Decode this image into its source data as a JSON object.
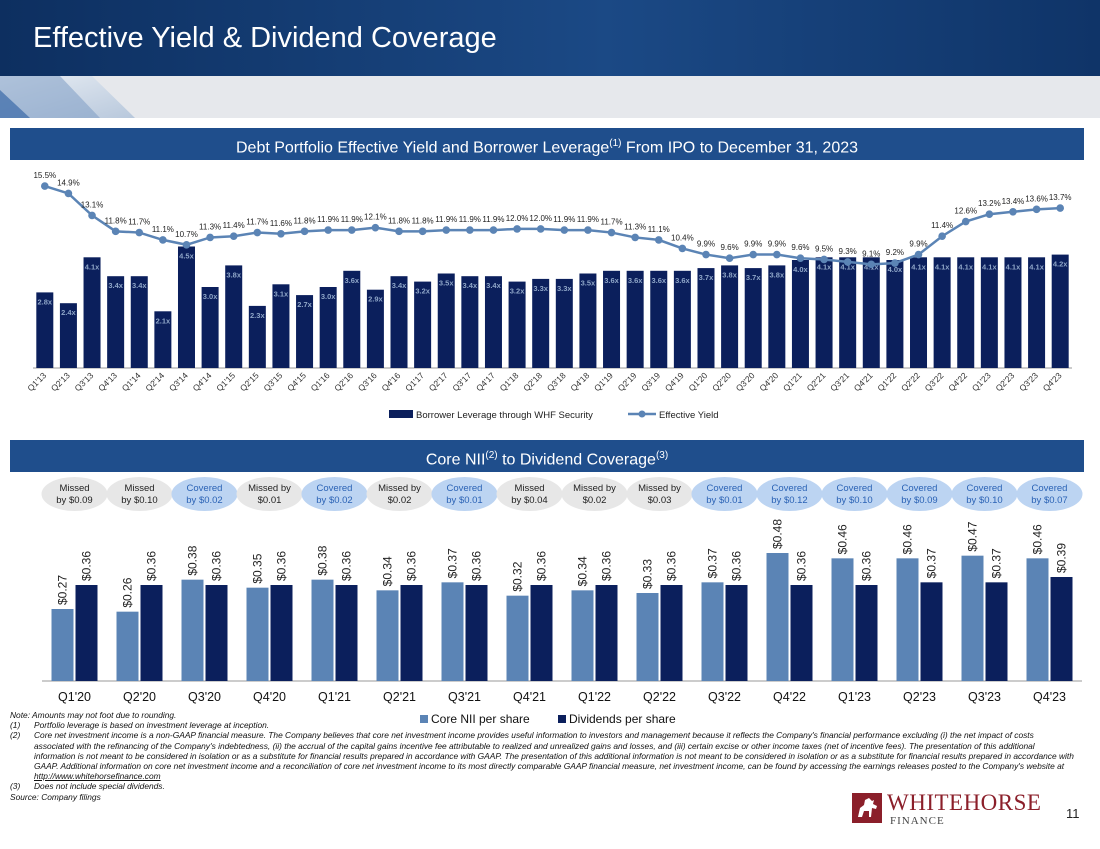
{
  "page": {
    "title": "Effective Yield & Dividend Coverage",
    "page_number": "11"
  },
  "colors": {
    "header_dark": "#0b2a55",
    "header_mid": "#1c4b86",
    "band_blue": "#1f4e8c",
    "navy": "#0b1f5c",
    "steel": "#5b84b5",
    "line": "#5b84b5",
    "covered_fill": "#bcd4f2",
    "covered_text": "#2a62b5",
    "missed_fill": "#e7e7e7"
  },
  "section1": {
    "heading": "Debt Portfolio Effective Yield and Borrower Leverage",
    "heading_sup": "(1)",
    "heading_suffix": " From IPO to December 31, 2023"
  },
  "section2": {
    "heading": "Core NII",
    "heading_sup1": "(2)",
    "heading_mid": " to Dividend Coverage",
    "heading_sup2": "(3)"
  },
  "chart_data": [
    {
      "type": "bar+line",
      "title": "Debt Portfolio Effective Yield and Borrower Leverage From IPO to December 31, 2023",
      "categories": [
        "Q1'13",
        "Q2'13",
        "Q3'13",
        "Q4'13",
        "Q1'14",
        "Q2'14",
        "Q3'14",
        "Q4'14",
        "Q1'15",
        "Q2'15",
        "Q3'15",
        "Q4'15",
        "Q1'16",
        "Q2'16",
        "Q3'16",
        "Q4'16",
        "Q1'17",
        "Q2'17",
        "Q3'17",
        "Q4'17",
        "Q1'18",
        "Q2'18",
        "Q3'18",
        "Q4'18",
        "Q1'19",
        "Q2'19",
        "Q3'19",
        "Q4'19",
        "Q1'20",
        "Q2'20",
        "Q3'20",
        "Q4'20",
        "Q1'21",
        "Q2'21",
        "Q3'21",
        "Q4'21",
        "Q1'22",
        "Q2'22",
        "Q3'22",
        "Q4'22",
        "Q1'23",
        "Q2'23",
        "Q3'23",
        "Q4'23"
      ],
      "series": [
        {
          "name": "Borrower Leverage through WHF Security",
          "kind": "bar",
          "values": [
            2.8,
            2.4,
            4.1,
            3.4,
            3.4,
            2.1,
            4.5,
            3.0,
            3.8,
            2.3,
            3.1,
            2.7,
            3.0,
            3.6,
            2.9,
            3.4,
            3.2,
            3.5,
            3.4,
            3.4,
            3.2,
            3.3,
            3.3,
            3.5,
            3.6,
            3.6,
            3.6,
            3.6,
            3.7,
            3.8,
            3.7,
            3.8,
            4.0,
            4.1,
            4.1,
            4.1,
            4.0,
            4.1,
            4.1,
            4.1,
            4.1,
            4.1,
            4.1,
            4.2
          ],
          "labels": [
            "2.8x",
            "2.4x",
            "4.1x",
            "3.4x",
            "3.4x",
            "2.1x",
            "4.5x",
            "3.0x",
            "3.8x",
            "2.3x",
            "3.1x",
            "2.7x",
            "3.0x",
            "3.6x",
            "2.9x",
            "3.4x",
            "3.2x",
            "3.5x",
            "3.4x",
            "3.4x",
            "3.2x",
            "3.3x",
            "3.3x",
            "3.5x",
            "3.6x",
            "3.6x",
            "3.6x",
            "3.6x",
            "3.7x",
            "3.8x",
            "3.7x",
            "3.8x",
            "4.0x",
            "4.1x",
            "4.1x",
            "4.1x",
            "4.0x",
            "4.1x",
            "4.1x",
            "4.1x",
            "4.1x",
            "4.1x",
            "4.1x",
            "4.2x"
          ]
        },
        {
          "name": "Effective Yield",
          "kind": "line",
          "values": [
            15.5,
            14.9,
            13.1,
            11.8,
            11.7,
            11.1,
            10.7,
            11.3,
            11.4,
            11.7,
            11.6,
            11.8,
            11.9,
            11.9,
            12.1,
            11.8,
            11.8,
            11.9,
            11.9,
            11.9,
            12.0,
            12.0,
            11.9,
            11.9,
            11.7,
            11.3,
            11.1,
            10.4,
            9.9,
            9.6,
            9.9,
            9.9,
            9.6,
            9.5,
            9.3,
            9.1,
            9.2,
            9.9,
            11.4,
            12.6,
            13.2,
            13.4,
            13.6,
            13.7
          ],
          "labels": [
            "15.5%",
            "14.9%",
            "13.1%",
            "11.8%",
            "11.7%",
            "11.1%",
            "10.7%",
            "11.3%",
            "11.4%",
            "11.7%",
            "11.6%",
            "11.8%",
            "11.9%",
            "11.9%",
            "12.1%",
            "11.8%",
            "11.8%",
            "11.9%",
            "11.9%",
            "11.9%",
            "12.0%",
            "12.0%",
            "11.9%",
            "11.9%",
            "11.7%",
            "11.3%",
            "11.1%",
            "10.4%",
            "9.9%",
            "9.6%",
            "9.9%",
            "9.9%",
            "9.6%",
            "9.5%",
            "9.3%",
            "9.1%",
            "9.2%",
            "9.9%",
            "11.4%",
            "12.6%",
            "13.2%",
            "13.4%",
            "13.6%",
            "13.7%"
          ]
        }
      ],
      "bar_ylim": [
        0,
        5
      ],
      "line_ylim": [
        7,
        16
      ],
      "legend_position": "bottom-center",
      "grid": false
    },
    {
      "type": "bar",
      "title": "Core NII to Dividend Coverage",
      "categories": [
        "Q1'20",
        "Q2'20",
        "Q3'20",
        "Q4'20",
        "Q1'21",
        "Q2'21",
        "Q3'21",
        "Q4'21",
        "Q1'22",
        "Q2'22",
        "Q3'22",
        "Q4'22",
        "Q1'23",
        "Q2'23",
        "Q3'23",
        "Q4'23"
      ],
      "series": [
        {
          "name": "Core NII per share",
          "values": [
            0.27,
            0.26,
            0.38,
            0.35,
            0.38,
            0.34,
            0.37,
            0.32,
            0.34,
            0.33,
            0.37,
            0.48,
            0.46,
            0.46,
            0.47,
            0.46
          ],
          "labels": [
            "$0.27",
            "$0.26",
            "$0.38",
            "$0.35",
            "$0.38",
            "$0.34",
            "$0.37",
            "$0.32",
            "$0.34",
            "$0.33",
            "$0.37",
            "$0.48",
            "$0.46",
            "$0.46",
            "$0.47",
            "$0.46"
          ]
        },
        {
          "name": "Dividends per share",
          "values": [
            0.36,
            0.36,
            0.36,
            0.36,
            0.36,
            0.36,
            0.36,
            0.36,
            0.36,
            0.36,
            0.36,
            0.36,
            0.36,
            0.37,
            0.37,
            0.39
          ],
          "labels": [
            "$0.36",
            "$0.36",
            "$0.36",
            "$0.36",
            "$0.36",
            "$0.36",
            "$0.36",
            "$0.36",
            "$0.36",
            "$0.36",
            "$0.36",
            "$0.36",
            "$0.36",
            "$0.37",
            "$0.37",
            "$0.39"
          ]
        }
      ],
      "ylim": [
        0,
        0.5
      ],
      "coverage_callouts": [
        {
          "status": "missed",
          "line1": "Missed",
          "line2": "by $0.09"
        },
        {
          "status": "missed",
          "line1": "Missed",
          "line2": "by $0.10"
        },
        {
          "status": "covered",
          "line1": "Covered",
          "line2": "by $0.02"
        },
        {
          "status": "missed",
          "line1": "Missed by",
          "line2": "$0.01"
        },
        {
          "status": "covered",
          "line1": "Covered",
          "line2": "by $0.02"
        },
        {
          "status": "missed",
          "line1": "Missed by",
          "line2": "$0.02"
        },
        {
          "status": "covered",
          "line1": "Covered",
          "line2": "by $0.01"
        },
        {
          "status": "missed",
          "line1": "Missed",
          "line2": "by $0.04"
        },
        {
          "status": "missed",
          "line1": "Missed by",
          "line2": "$0.02"
        },
        {
          "status": "missed",
          "line1": "Missed by",
          "line2": "$0.03"
        },
        {
          "status": "covered",
          "line1": "Covered",
          "line2": "by $0.01"
        },
        {
          "status": "covered",
          "line1": "Covered",
          "line2": "by $0.12"
        },
        {
          "status": "covered",
          "line1": "Covered",
          "line2": "by $0.10"
        },
        {
          "status": "covered",
          "line1": "Covered",
          "line2": "by $0.09"
        },
        {
          "status": "covered",
          "line1": "Covered",
          "line2": "by $0.10"
        },
        {
          "status": "covered",
          "line1": "Covered",
          "line2": "by $0.07"
        }
      ],
      "legend_position": "bottom-center",
      "grid": false
    }
  ],
  "notes": {
    "intro": "Note: Amounts may not foot due to rounding.",
    "n1_num": "(1)",
    "n1": "Portfolio leverage is based on investment leverage at inception.",
    "n2_num": "(2)",
    "n2": "Core net investment income is a non-GAAP financial measure. The Company believes that core net investment income provides useful information to investors and management because it reflects the Company's financial performance excluding (i) the net impact of costs associated with the refinancing of the Company's indebtedness, (ii) the accrual of the capital gains incentive fee attributable to realized and unrealized gains and losses, and (iii) certain excise or other income taxes (net of incentive fees). The presentation of this additional information is not meant to be considered in isolation or as a substitute for financial results prepared in accordance with GAAP. The presentation of this additional information is not meant to be considered in isolation or as a substitute for financial results prepared in accordance with GAAP. Additional information on core net investment income and a reconciliation of core net investment income to its most directly comparable GAAP financial measure, net investment income, can be found by accessing the earnings releases posted to the Company's website at",
    "n2_link": "http://www.whitehorsefinance.com",
    "n3_num": "(3)",
    "n3": "Does not include special dividends.",
    "source": "Source: Company filings"
  },
  "logo": {
    "name": "WHITEHORSE",
    "sub": "FINANCE"
  }
}
